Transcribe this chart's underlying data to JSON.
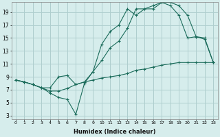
{
  "xlabel": "Humidex (Indice chaleur)",
  "bg_color": "#d6edec",
  "grid_color": "#aecece",
  "line_color": "#1a6b5a",
  "xlim": [
    -0.5,
    23.5
  ],
  "ylim": [
    2.5,
    20.5
  ],
  "xticks": [
    0,
    1,
    2,
    3,
    4,
    5,
    6,
    7,
    8,
    9,
    10,
    11,
    12,
    13,
    14,
    15,
    16,
    17,
    18,
    19,
    20,
    21,
    22,
    23
  ],
  "yticks": [
    3,
    5,
    7,
    9,
    11,
    13,
    15,
    17,
    19
  ],
  "line1_x": [
    0,
    1,
    2,
    3,
    4,
    5,
    6,
    7,
    8,
    9,
    10,
    11,
    12,
    13,
    14,
    15,
    16,
    17,
    18,
    19,
    20,
    21,
    22,
    23
  ],
  "line1_y": [
    8.5,
    8.2,
    7.8,
    7.3,
    6.8,
    6.8,
    7.2,
    7.8,
    8.2,
    8.5,
    8.8,
    9.0,
    9.2,
    9.5,
    10.0,
    10.2,
    10.5,
    10.8,
    11.0,
    11.2,
    11.2,
    11.2,
    11.2,
    11.2
  ],
  "line2_x": [
    0,
    1,
    2,
    3,
    4,
    5,
    6,
    7,
    8,
    9,
    10,
    11,
    12,
    13,
    14,
    15,
    16,
    17,
    18,
    19,
    20,
    21,
    22,
    23
  ],
  "line2_y": [
    8.5,
    8.2,
    7.8,
    7.3,
    6.5,
    5.8,
    5.5,
    3.2,
    8.0,
    9.8,
    14.0,
    16.0,
    17.0,
    19.5,
    18.5,
    19.5,
    20.0,
    20.5,
    20.0,
    18.5,
    15.0,
    15.2,
    14.8,
    11.2
  ],
  "line3_x": [
    0,
    1,
    2,
    3,
    4,
    5,
    6,
    7,
    8,
    9,
    10,
    11,
    12,
    13,
    14,
    15,
    16,
    17,
    18,
    19,
    20,
    21,
    22,
    23
  ],
  "line3_y": [
    8.5,
    8.2,
    7.8,
    7.3,
    7.3,
    9.0,
    9.2,
    7.8,
    8.2,
    9.8,
    11.5,
    13.5,
    14.5,
    16.5,
    19.5,
    19.5,
    19.5,
    20.5,
    20.5,
    20.0,
    18.5,
    15.2,
    15.0,
    11.2
  ]
}
